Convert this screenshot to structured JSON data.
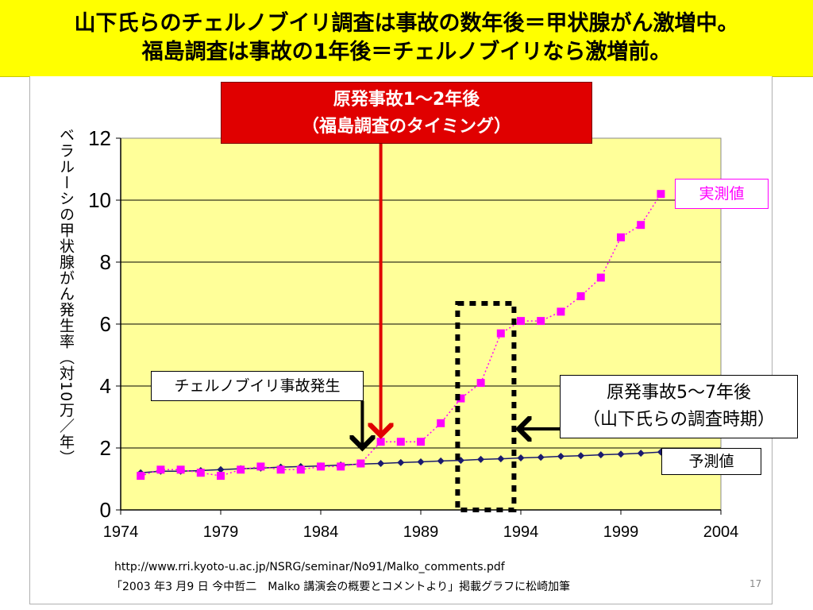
{
  "title": {
    "line1": "山下氏らのチェルノブイリ調査は事故の数年後＝甲状腺がん激増中。",
    "line2": "福島調査は事故の1年後＝チェルノブイリなら激増前。"
  },
  "callouts": {
    "red_line1": "原発事故1〜2年後",
    "red_line2": "（福島調査のタイミング）",
    "chernobyl": "チェルノブイリ事故発生",
    "yamashita_line1": "原発事故5〜7年後",
    "yamashita_line2": "（山下氏らの調査時期）",
    "measured": "実測値",
    "predicted": "予測値"
  },
  "footer": {
    "url": "http://www.rri.kyoto-u.ac.jp/NSRG/seminar/No91/Malko_comments.pdf",
    "note": "「2003 年3 月9 日 今中哲二　Malko 講演会の概要とコメントより」掲載グラフに松崎加筆",
    "page": "17"
  },
  "colors": {
    "title_bg": "#ffff00",
    "plot_bg": "#ffff99",
    "measured": "#ff00ff",
    "predicted": "#1a1a6e",
    "callout_red": "#e00000"
  },
  "chart_data": {
    "type": "line",
    "ylabel": "ベラルーシの甲状腺がん発生率（対10万／年）",
    "xlabel": "",
    "xlim": [
      1974,
      2004
    ],
    "ylim": [
      0,
      12
    ],
    "xticks": [
      1974,
      1979,
      1984,
      1989,
      1994,
      1999,
      2004
    ],
    "yticks": [
      0,
      2,
      4,
      6,
      8,
      10,
      12
    ],
    "grid": true,
    "series": [
      {
        "name": "実測値",
        "marker": "square",
        "line": "dotted",
        "x": [
          1975,
          1976,
          1977,
          1978,
          1979,
          1980,
          1981,
          1982,
          1983,
          1984,
          1985,
          1986,
          1987,
          1988,
          1989,
          1990,
          1991,
          1992,
          1993,
          1994,
          1995,
          1996,
          1997,
          1998,
          1999,
          2000,
          2001
        ],
        "values": [
          1.1,
          1.3,
          1.3,
          1.2,
          1.1,
          1.3,
          1.4,
          1.3,
          1.3,
          1.4,
          1.4,
          1.5,
          2.2,
          2.2,
          2.2,
          2.8,
          3.6,
          4.1,
          5.7,
          6.1,
          6.1,
          6.4,
          6.9,
          7.5,
          8.8,
          9.2,
          10.2
        ]
      },
      {
        "name": "予測値",
        "marker": "diamond",
        "line": "solid",
        "x": [
          1975,
          1976,
          1977,
          1978,
          1979,
          1980,
          1981,
          1982,
          1983,
          1984,
          1985,
          1986,
          1987,
          1988,
          1989,
          1990,
          1991,
          1992,
          1993,
          1994,
          1995,
          1996,
          1997,
          1998,
          1999,
          2000,
          2001
        ],
        "values": [
          1.2,
          1.25,
          1.25,
          1.27,
          1.3,
          1.33,
          1.35,
          1.38,
          1.4,
          1.42,
          1.45,
          1.48,
          1.5,
          1.53,
          1.55,
          1.58,
          1.6,
          1.63,
          1.65,
          1.68,
          1.7,
          1.73,
          1.75,
          1.78,
          1.8,
          1.83,
          1.87
        ]
      }
    ],
    "highlight_range_x": [
      1991,
      1993.5
    ],
    "event_markers": [
      {
        "x": 1986,
        "label": "チェルノブイリ事故発生"
      },
      {
        "x": 1987,
        "label": "原発事故1〜2年後"
      }
    ]
  }
}
